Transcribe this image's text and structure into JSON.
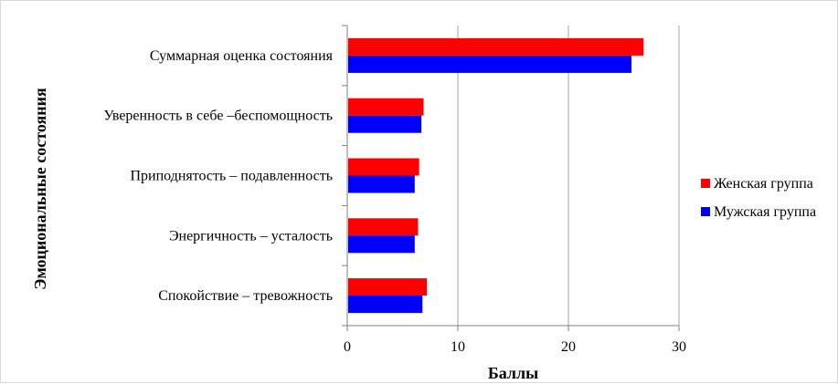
{
  "chart_data": {
    "type": "bar",
    "orientation": "horizontal",
    "categories": [
      "Суммарная оценка состояния",
      "Уверенность в себе –беспомощность",
      "Приподнятость – подавленность",
      "Энергичность – усталость",
      "Спокойствие – тревожность"
    ],
    "series": [
      {
        "name": "Женская группа",
        "color": "#ff0000",
        "values": [
          26.8,
          6.9,
          6.5,
          6.4,
          7.2
        ]
      },
      {
        "name": "Мужская группа",
        "color": "#0000ff",
        "values": [
          25.7,
          6.7,
          6.1,
          6.1,
          6.8
        ]
      }
    ],
    "xlabel": "Баллы",
    "ylabel": "Эмоциональные состояния",
    "xlim": [
      0,
      30
    ],
    "xticks": [
      0,
      10,
      20,
      30
    ],
    "grid": "vertical",
    "legend": "right"
  }
}
